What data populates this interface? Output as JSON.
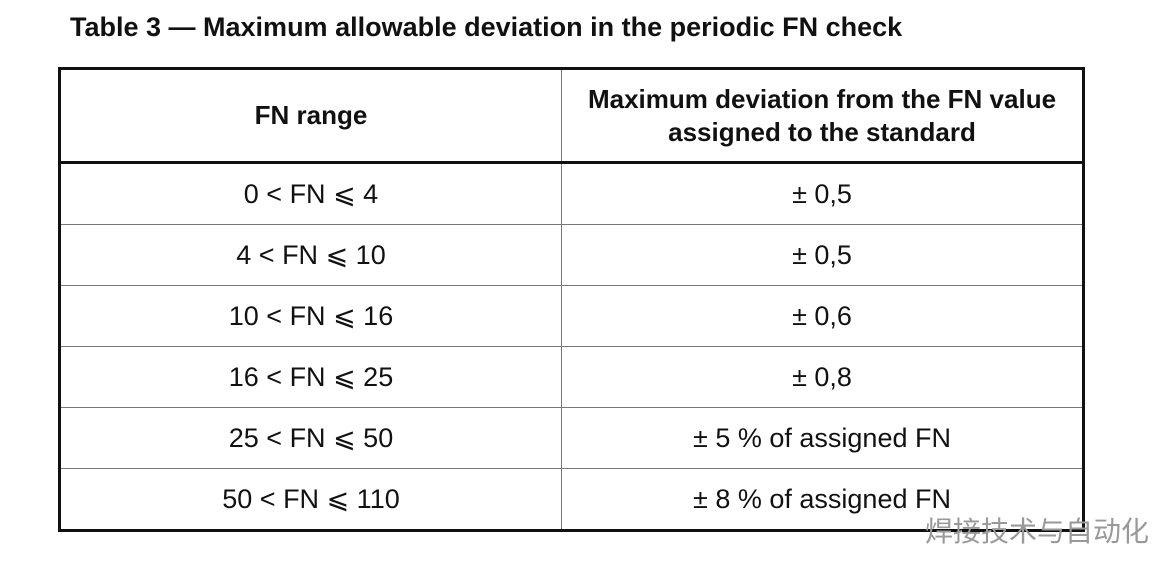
{
  "header": {
    "title": "Table 3 — Maximum allowable deviation in the periodic FN check"
  },
  "table": {
    "columns": [
      "FN range",
      "Maximum deviation from the FN value assigned to the standard"
    ],
    "rows": [
      [
        "0 < FN ⩽ 4",
        "± 0,5"
      ],
      [
        "4 < FN ⩽ 10",
        "± 0,5"
      ],
      [
        "10 < FN ⩽ 16",
        "± 0,6"
      ],
      [
        "16 < FN ⩽ 25",
        "± 0,8"
      ],
      [
        "25 < FN ⩽ 50",
        "± 5 % of assigned FN"
      ],
      [
        "50 < FN ⩽ 110",
        "± 8 % of assigned FN"
      ]
    ]
  },
  "watermark": "焊接技术与自动化"
}
